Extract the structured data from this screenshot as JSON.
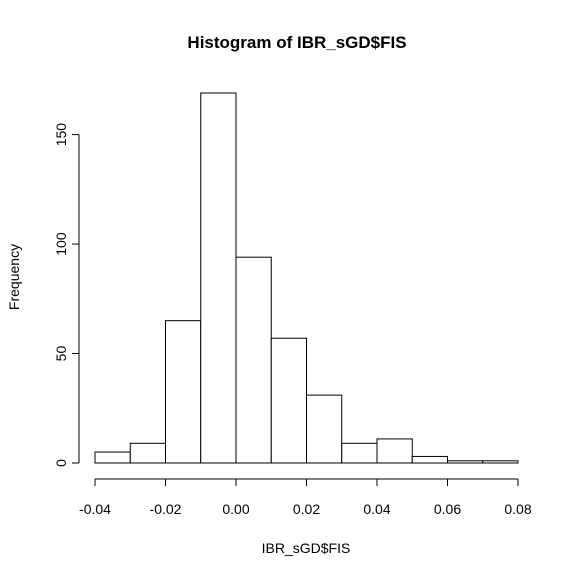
{
  "chart_data": {
    "type": "bar",
    "title": "Histogram of IBR_sGD$FIS",
    "xlabel": "IBR_sGD$FIS",
    "ylabel": "Frequency",
    "bins": [
      {
        "start": -0.04,
        "end": -0.03,
        "count": 5
      },
      {
        "start": -0.03,
        "end": -0.02,
        "count": 9
      },
      {
        "start": -0.02,
        "end": -0.01,
        "count": 65
      },
      {
        "start": -0.01,
        "end": 0.0,
        "count": 169
      },
      {
        "start": 0.0,
        "end": 0.01,
        "count": 94
      },
      {
        "start": 0.01,
        "end": 0.02,
        "count": 57
      },
      {
        "start": 0.02,
        "end": 0.03,
        "count": 31
      },
      {
        "start": 0.03,
        "end": 0.04,
        "count": 9
      },
      {
        "start": 0.04,
        "end": 0.05,
        "count": 11
      },
      {
        "start": 0.05,
        "end": 0.06,
        "count": 3
      },
      {
        "start": 0.06,
        "end": 0.07,
        "count": 1
      },
      {
        "start": 0.07,
        "end": 0.08,
        "count": 1
      }
    ],
    "xlim": [
      -0.04,
      0.08
    ],
    "ylim": [
      0,
      169
    ],
    "x_ticks": [
      -0.04,
      -0.02,
      0.0,
      0.02,
      0.04,
      0.06,
      0.08
    ],
    "x_tick_labels": [
      "-0.04",
      "-0.02",
      "0.00",
      "0.02",
      "0.04",
      "0.06",
      "0.08"
    ],
    "y_ticks": [
      0,
      50,
      100,
      150
    ],
    "y_tick_labels": [
      "0",
      "50",
      "100",
      "150"
    ],
    "grid": false,
    "legend": "none"
  }
}
